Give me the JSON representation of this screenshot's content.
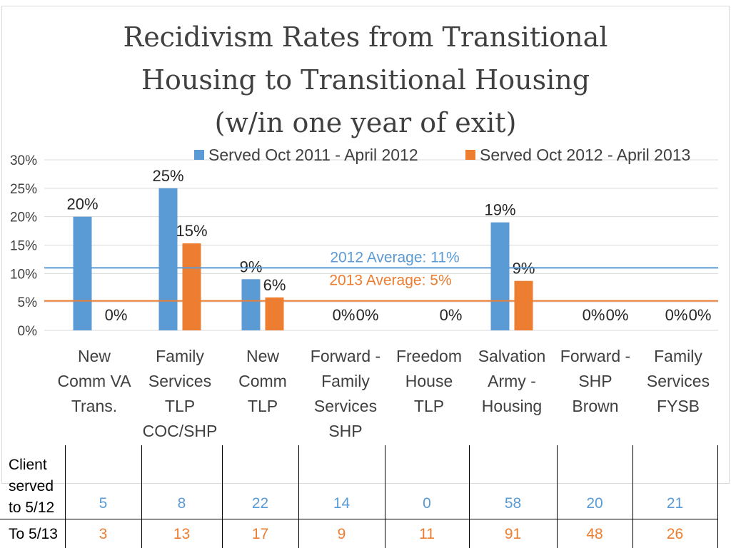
{
  "chart_data": {
    "type": "bar",
    "title": "Recidivism Rates from Transitional Housing to Transitional Housing (w/in one year of exit)",
    "title_lines": [
      "Recidivism Rates from Transitional",
      "Housing to Transitional Housing",
      "(w/in one year of exit)"
    ],
    "categories": [
      [
        "New",
        "Comm VA",
        "Trans."
      ],
      [
        "Family",
        "Services",
        "TLP",
        "COC/SHP"
      ],
      [
        "New",
        "Comm",
        "TLP"
      ],
      [
        "Forward -",
        "Family",
        "Services",
        "SHP"
      ],
      [
        "Freedom",
        "House",
        "TLP"
      ],
      [
        "Salvation",
        "Army -",
        "Housing"
      ],
      [
        "Forward -",
        "SHP",
        "Brown"
      ],
      [
        "Family",
        "Services",
        "FYSB"
      ]
    ],
    "series": [
      {
        "name": "Served Oct 2011 - April 2012",
        "color": "#5b9bd5",
        "values": [
          20,
          25,
          9,
          0,
          0,
          19,
          0,
          0
        ],
        "labels": [
          "20%",
          "25%",
          "9%",
          "0%",
          "",
          "19%",
          "0%",
          "0%"
        ]
      },
      {
        "name": "Served Oct 2012 - April 2013",
        "color": "#ed7d31",
        "values": [
          0,
          15.3,
          5.8,
          0,
          0,
          8.7,
          0,
          0
        ],
        "labels": [
          "0%",
          "15%",
          "6%",
          "0%",
          "0%",
          "9%",
          "0%",
          "0%"
        ]
      }
    ],
    "averages": [
      {
        "label": "2012 Average: 11%",
        "value": 11,
        "color": "#5b9bd5"
      },
      {
        "label": "2013 Average: 5%",
        "value": 5.2,
        "color": "#ed7d31"
      }
    ],
    "y_ticks": [
      "0%",
      "5%",
      "10%",
      "15%",
      "20%",
      "25%",
      "30%"
    ],
    "ylim": [
      0,
      30
    ],
    "grid": true,
    "legend_position": "top-right"
  },
  "table": {
    "row1_label": "Client served to 5/12",
    "row1_label_lines": [
      "Client",
      "served",
      "to 5/12"
    ],
    "row1_values": [
      "5",
      "8",
      "22",
      "14",
      "0",
      "58",
      "20",
      "21"
    ],
    "row2_label": "To 5/13",
    "row2_values": [
      "3",
      "13",
      "17",
      "9",
      "11",
      "91",
      "48",
      "26"
    ]
  }
}
